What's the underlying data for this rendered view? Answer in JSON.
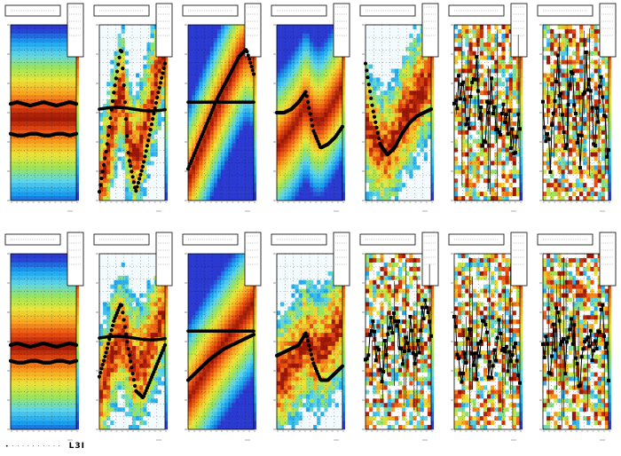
{
  "canvas": {
    "rows": 2,
    "cols": 7,
    "colormap": [
      "#2a3ad0",
      "#1aa3f0",
      "#5fd5e8",
      "#9be35a",
      "#e9e53a",
      "#f7a520",
      "#e84a12",
      "#9a1606"
    ]
  },
  "panels": [
    {
      "row": 0,
      "col": 0,
      "pattern": "smooth",
      "marker_mode": "two-bands",
      "band_a": [
        0.55,
        0.56,
        0.55,
        0.54,
        0.55,
        0.56,
        0.55,
        0.54,
        0.55,
        0.56,
        0.55
      ],
      "band_b": [
        0.38,
        0.37,
        0.37,
        0.38,
        0.38,
        0.37,
        0.37,
        0.38,
        0.38,
        0.37,
        0.38
      ]
    },
    {
      "row": 0,
      "col": 1,
      "pattern": "diagonal-noisy",
      "marker_mode": "zigzag-cross",
      "profile": [
        0.05,
        0.3,
        0.62,
        0.88,
        0.25,
        0.05,
        0.2,
        0.4,
        0.6,
        0.78
      ]
    },
    {
      "row": 0,
      "col": 2,
      "pattern": "diagonal-smooth",
      "marker_mode": "line-plus-band",
      "profile": [
        0.18,
        0.28,
        0.38,
        0.48,
        0.58,
        0.66,
        0.74,
        0.82,
        0.86,
        0.72
      ]
    },
    {
      "row": 0,
      "col": 3,
      "pattern": "diagonal-smooth",
      "marker_mode": "spike",
      "profile": [
        0.5,
        0.5,
        0.52,
        0.56,
        0.62,
        0.4,
        0.3,
        0.32,
        0.36,
        0.42
      ]
    },
    {
      "row": 0,
      "col": 4,
      "pattern": "diagonal-noisy",
      "marker_mode": "vshape",
      "profile": [
        0.78,
        0.52,
        0.32,
        0.26,
        0.3,
        0.38,
        0.44,
        0.48,
        0.5,
        0.52
      ]
    },
    {
      "row": 0,
      "col": 5,
      "pattern": "speckle",
      "marker_mode": "random",
      "profile": [
        0.52,
        0.68,
        0.45,
        0.78,
        0.35,
        0.62,
        0.4,
        0.55,
        0.32,
        0.48
      ]
    },
    {
      "row": 0,
      "col": 6,
      "pattern": "speckle",
      "marker_mode": "random",
      "profile": [
        0.55,
        0.18,
        0.82,
        0.3,
        0.72,
        0.22,
        0.78,
        0.35,
        0.65,
        0.25
      ]
    },
    {
      "row": 1,
      "col": 0,
      "pattern": "smooth",
      "marker_mode": "two-bands",
      "band_a": [
        0.48,
        0.49,
        0.48,
        0.47,
        0.48,
        0.49,
        0.48,
        0.47,
        0.48,
        0.49,
        0.48
      ],
      "band_b": [
        0.39,
        0.38,
        0.38,
        0.39,
        0.39,
        0.38,
        0.38,
        0.39,
        0.39,
        0.38,
        0.39
      ]
    },
    {
      "row": 1,
      "col": 1,
      "pattern": "diagonal-noisy",
      "marker_mode": "zigzag-cross",
      "profile": [
        0.3,
        0.45,
        0.62,
        0.72,
        0.45,
        0.22,
        0.18,
        0.28,
        0.38,
        0.48
      ]
    },
    {
      "row": 1,
      "col": 2,
      "pattern": "diagonal-smooth",
      "marker_mode": "line-plus-band",
      "profile": [
        0.28,
        0.32,
        0.36,
        0.4,
        0.43,
        0.46,
        0.48,
        0.5,
        0.52,
        0.54
      ]
    },
    {
      "row": 1,
      "col": 3,
      "pattern": "diagonal-noisy",
      "marker_mode": "spike",
      "profile": [
        0.42,
        0.44,
        0.46,
        0.48,
        0.55,
        0.38,
        0.28,
        0.28,
        0.32,
        0.36
      ]
    },
    {
      "row": 1,
      "col": 4,
      "pattern": "speckle",
      "marker_mode": "random",
      "profile": [
        0.38,
        0.62,
        0.3,
        0.45,
        0.75,
        0.35,
        0.55,
        0.42,
        0.68,
        0.5
      ]
    },
    {
      "row": 1,
      "col": 5,
      "pattern": "speckle",
      "marker_mode": "random",
      "profile": [
        0.68,
        0.3,
        0.5,
        0.35,
        0.62,
        0.28,
        0.55,
        0.4,
        0.5,
        0.32
      ]
    },
    {
      "row": 1,
      "col": 6,
      "pattern": "speckle",
      "marker_mode": "random",
      "profile": [
        0.55,
        0.35,
        0.68,
        0.4,
        0.62,
        0.28,
        0.58,
        0.45,
        0.7,
        0.38
      ]
    }
  ],
  "footer": {
    "tag": "L3I"
  },
  "chart_data": {
    "type": "heatmap",
    "panels": 14,
    "layout": "2 rows x 7 columns",
    "colorscale": [
      "#2a3ad0",
      "#1aa3f0",
      "#5fd5e8",
      "#9be35a",
      "#e9e53a",
      "#f7a520",
      "#e84a12",
      "#9a1606"
    ],
    "overlay": "black markers (profile)",
    "grid": true
  }
}
